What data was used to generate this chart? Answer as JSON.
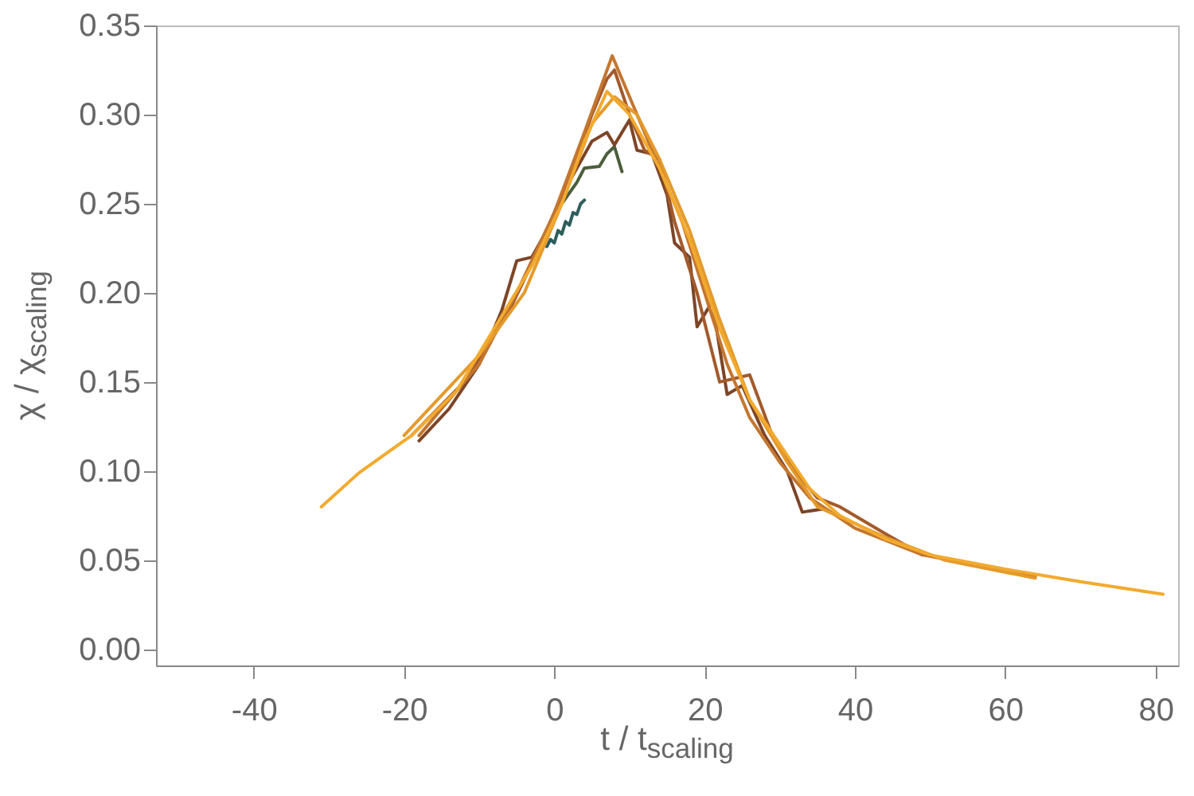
{
  "chart_data": {
    "type": "line",
    "xlabel": "t / t$_{scaling}$",
    "ylabel": "χ / χ$_{scaling}$",
    "xlim": [
      -53,
      83
    ],
    "xticks": [
      -40,
      -20,
      0,
      20,
      40,
      60,
      80
    ],
    "ylim": [
      -0.009,
      0.35
    ],
    "yticks": [
      {
        "value": 0,
        "label": "0.00"
      },
      {
        "value": 0.05,
        "label": "0.05"
      },
      {
        "value": 0.1,
        "label": "0.10"
      },
      {
        "value": 0.15,
        "label": "0.15"
      },
      {
        "value": 0.2,
        "label": "0.20"
      },
      {
        "value": 0.25,
        "label": "0.25"
      },
      {
        "value": 0.3,
        "label": "0.30"
      },
      {
        "value": 0.35,
        "label": "0.35"
      }
    ],
    "grid": false,
    "marker": "none",
    "line_style": "solid",
    "series": [
      {
        "color": "#2e5e5c",
        "x": [
          -1,
          -0.5,
          0,
          0.5,
          1,
          1.5,
          2,
          2.5,
          3,
          3.5,
          4
        ],
        "values": [
          0.226,
          0.23,
          0.228,
          0.235,
          0.233,
          0.24,
          0.238,
          0.245,
          0.244,
          0.25,
          0.252
        ]
      },
      {
        "color": "#4b5e3c",
        "x": [
          1,
          3,
          4,
          6,
          7,
          8,
          9
        ],
        "values": [
          0.25,
          0.262,
          0.27,
          0.271,
          0.278,
          0.282,
          0.268
        ]
      },
      {
        "color": "#7d4527",
        "x": [
          -18,
          -14,
          -10,
          -7,
          -5,
          -3,
          -1,
          1,
          3,
          5,
          7,
          8,
          9,
          10,
          11,
          13,
          15,
          16,
          18,
          19,
          21,
          23,
          25,
          28,
          31,
          33,
          36
        ],
        "values": [
          0.117,
          0.135,
          0.16,
          0.19,
          0.218,
          0.22,
          0.235,
          0.255,
          0.27,
          0.285,
          0.29,
          0.283,
          0.29,
          0.297,
          0.28,
          0.278,
          0.255,
          0.228,
          0.22,
          0.181,
          0.195,
          0.143,
          0.148,
          0.12,
          0.1,
          0.077,
          0.079
        ]
      },
      {
        "color": "#a35a2c",
        "x": [
          -19,
          -12,
          -6,
          -2,
          2,
          5,
          7,
          8,
          10,
          12,
          14,
          16,
          19,
          22,
          26,
          29,
          32,
          35,
          38,
          44,
          49
        ],
        "values": [
          0.12,
          0.15,
          0.19,
          0.225,
          0.265,
          0.3,
          0.32,
          0.325,
          0.3,
          0.28,
          0.275,
          0.24,
          0.2,
          0.15,
          0.154,
          0.12,
          0.1,
          0.085,
          0.08,
          0.065,
          0.053
        ]
      },
      {
        "color": "#c4762f",
        "x": [
          -18,
          -10,
          -5,
          0,
          4,
          7.7,
          10,
          13,
          17,
          20,
          23,
          26,
          30,
          34,
          40,
          49,
          64
        ],
        "values": [
          0.12,
          0.16,
          0.2,
          0.245,
          0.29,
          0.333,
          0.31,
          0.28,
          0.24,
          0.2,
          0.16,
          0.13,
          0.105,
          0.085,
          0.068,
          0.053,
          0.041
        ]
      },
      {
        "color": "#e49a2c",
        "x": [
          -20,
          -10,
          -4,
          1,
          5,
          8,
          11,
          14,
          18,
          22,
          26,
          31,
          35,
          44,
          52,
          64
        ],
        "values": [
          0.12,
          0.165,
          0.2,
          0.25,
          0.295,
          0.31,
          0.3,
          0.275,
          0.235,
          0.185,
          0.14,
          0.105,
          0.08,
          0.063,
          0.05,
          0.04
        ]
      },
      {
        "color": "#f2aa2e",
        "x": [
          -31,
          -26,
          -19,
          -13,
          -8,
          -3,
          1,
          4,
          7,
          10,
          14,
          18,
          22,
          26,
          30,
          34,
          38,
          44,
          50,
          60,
          70,
          81
        ],
        "values": [
          0.08,
          0.099,
          0.12,
          0.145,
          0.18,
          0.215,
          0.25,
          0.285,
          0.313,
          0.3,
          0.27,
          0.23,
          0.18,
          0.14,
          0.115,
          0.09,
          0.075,
          0.062,
          0.053,
          0.045,
          0.038,
          0.031
        ]
      }
    ]
  }
}
